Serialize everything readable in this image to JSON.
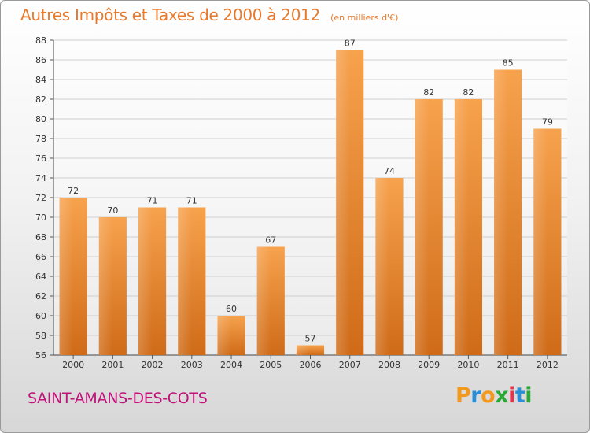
{
  "chart_data": {
    "type": "bar",
    "title": "Autres Impôts et Taxes de 2000 à 2012",
    "subtitle": "(en milliers d'€)",
    "categories": [
      "2000",
      "2001",
      "2002",
      "2003",
      "2004",
      "2005",
      "2006",
      "2007",
      "2008",
      "2009",
      "2010",
      "2011",
      "2012"
    ],
    "values": [
      72,
      70,
      71,
      71,
      60,
      67,
      57,
      87,
      74,
      82,
      82,
      85,
      79
    ],
    "ylim": [
      56,
      88
    ],
    "yticks": [
      56,
      58,
      60,
      62,
      64,
      66,
      68,
      70,
      72,
      74,
      76,
      78,
      80,
      82,
      84,
      86,
      88
    ],
    "grid": true,
    "bar_color": "#f0943b"
  },
  "footer": {
    "commune": "SAINT-AMANS-DES-COTS",
    "brand": "Proxiti"
  },
  "colors": {
    "title": "#e8792a",
    "commune": "#c2127a",
    "brand_letters": [
      "#f29a1f",
      "#2a8ed6",
      "#f29a1f",
      "#2aa836",
      "#e8344a",
      "#2a8ed6",
      "#2aa836"
    ]
  }
}
